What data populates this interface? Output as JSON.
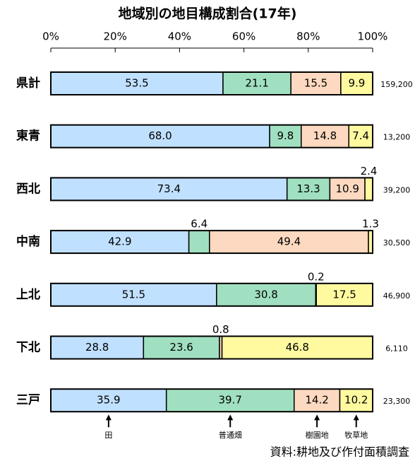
{
  "chart_data": {
    "type": "stacked-bar-horizontal",
    "title": "地域別の地目構成割合(17年)",
    "categories": [
      "県計",
      "東青",
      "西北",
      "中南",
      "上北",
      "下北",
      "三戸"
    ],
    "series": [
      {
        "name": "田",
        "color": "#c0e0ff",
        "values": [
          53.5,
          68.0,
          73.4,
          42.9,
          51.5,
          28.8,
          35.9
        ],
        "value_labels": [
          "53.5",
          "68.0",
          "73.4",
          "42.9",
          "51.5",
          "28.8",
          "35.9"
        ]
      },
      {
        "name": "普通畑",
        "color": "#a0e0c0",
        "values": [
          21.1,
          9.8,
          13.3,
          6.4,
          30.8,
          23.6,
          39.7
        ],
        "value_labels": [
          "21.1",
          "9.8",
          "13.3",
          "6.4",
          "30.8",
          "23.6",
          "39.7"
        ]
      },
      {
        "name": "樹園地",
        "color": "#fcd9c0",
        "values": [
          15.5,
          14.8,
          10.9,
          49.4,
          0.2,
          0.8,
          14.2
        ],
        "value_labels": [
          "15.5",
          "14.8",
          "10.9",
          "49.4",
          "0.2",
          "0.8",
          "14.2"
        ]
      },
      {
        "name": "牧草地",
        "color": "#fffaa0",
        "values": [
          9.9,
          7.4,
          2.4,
          1.3,
          17.5,
          46.8,
          10.2
        ],
        "value_labels": [
          "9.9",
          "7.4",
          "2.4",
          "1.3",
          "17.5",
          "46.8",
          "10.2"
        ]
      }
    ],
    "totals": {
      "values": [
        159200,
        13200,
        39200,
        30500,
        46900,
        6110,
        23300
      ],
      "value_labels": [
        "159,200",
        "13,200",
        "39,200",
        "30,500",
        "46,900",
        "6,110",
        "23,300"
      ]
    },
    "xlim": [
      0,
      100
    ],
    "xticks": [
      {
        "value": 0,
        "label": "0%"
      },
      {
        "value": 20,
        "label": "20%"
      },
      {
        "value": 40,
        "label": "40%"
      },
      {
        "value": 60,
        "label": "60%"
      },
      {
        "value": 80,
        "label": "80%"
      },
      {
        "value": 100,
        "label": "100%"
      }
    ],
    "source": "資料:耕地及び作付面積調査"
  }
}
